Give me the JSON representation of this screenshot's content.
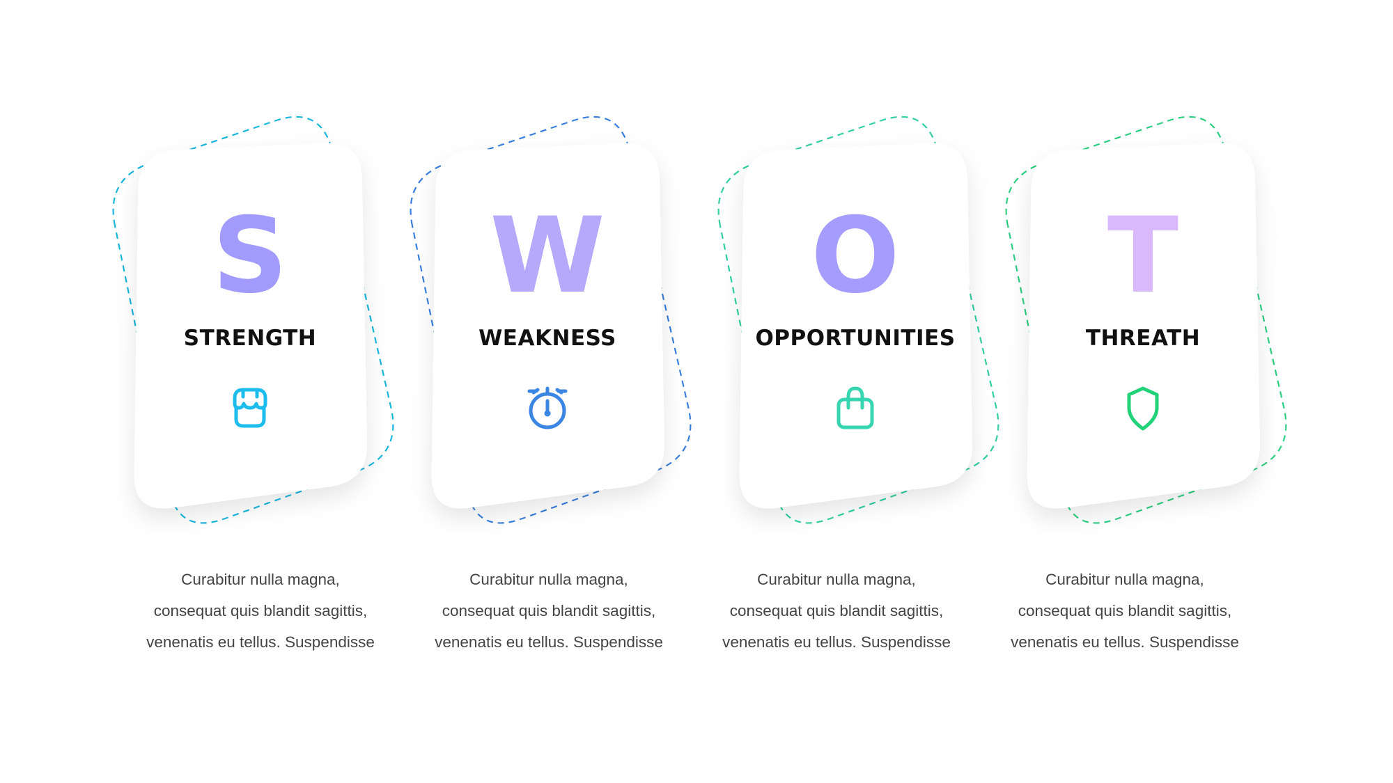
{
  "cards": [
    {
      "letter": "S",
      "title": "STRENGTH",
      "icon": "store-icon",
      "letter_color": "#a29bfe",
      "icon_color": "#1cbdec",
      "dash_color": "#1ab6de",
      "desc": [
        "Curabitur nulla magna,",
        "consequat quis blandit sagittis,",
        "venenatis eu tellus. Suspendisse"
      ]
    },
    {
      "letter": "W",
      "title": "WEAKNESS",
      "icon": "stopwatch-icon",
      "letter_color": "#b6a9fc",
      "icon_color": "#3b86e3",
      "dash_color": "#3a7fde",
      "desc": [
        "Curabitur nulla magna,",
        "consequat quis blandit sagittis,",
        "venenatis eu tellus. Suspendisse"
      ]
    },
    {
      "letter": "O",
      "title": "OPPORTUNITIES",
      "icon": "shopping-bag-icon",
      "letter_color": "#a59dfd",
      "icon_color": "#38d6b0",
      "dash_color": "#31cfa2",
      "desc": [
        "Curabitur nulla magna,",
        "consequat quis blandit sagittis,",
        "venenatis eu tellus. Suspendisse"
      ]
    },
    {
      "letter": "T",
      "title": "THREATH",
      "icon": "shield-icon",
      "letter_color": "#d9b8fb",
      "icon_color": "#22d279",
      "dash_color": "#2ece82",
      "desc": [
        "Curabitur nulla magna,",
        "consequat quis blandit sagittis,",
        "venenatis eu tellus. Suspendisse"
      ]
    }
  ]
}
